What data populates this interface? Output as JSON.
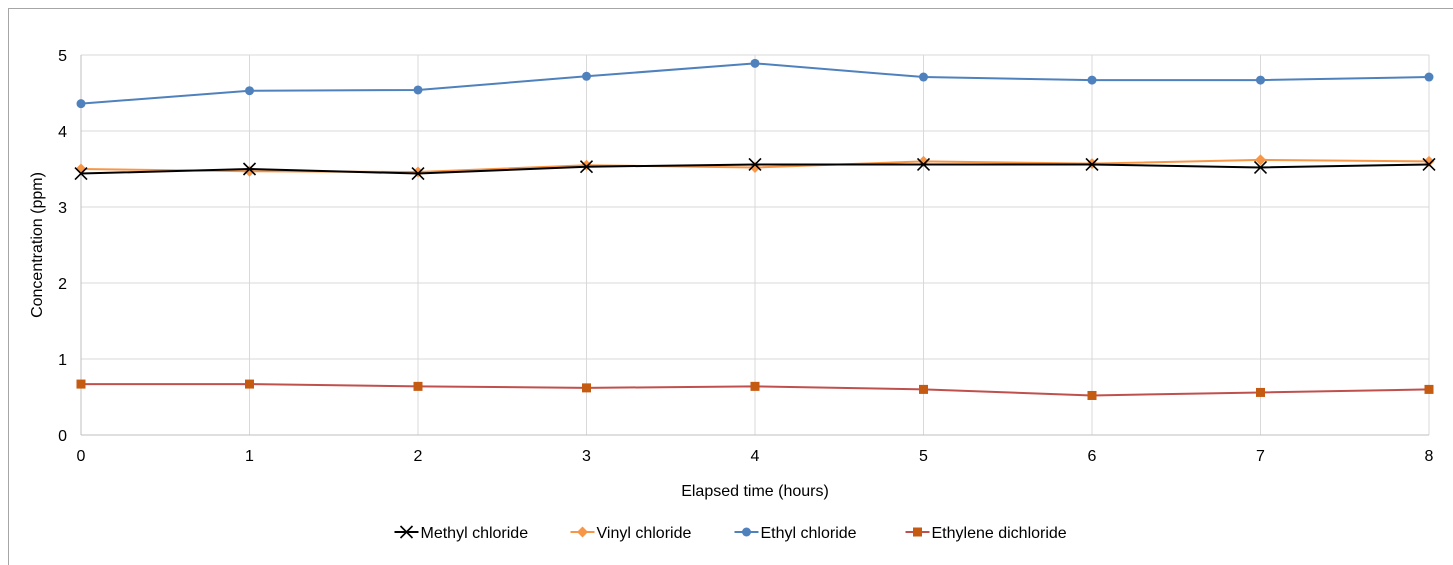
{
  "chart_data": {
    "type": "line",
    "xlabel": "Elapsed time (hours)",
    "ylabel": "Concentration (ppm)",
    "x": [
      0,
      1,
      2,
      3,
      4,
      5,
      6,
      7,
      8
    ],
    "xlim": [
      0,
      8
    ],
    "ylim": [
      0,
      5
    ],
    "xticks": [
      "0",
      "1",
      "2",
      "3",
      "4",
      "5",
      "6",
      "7",
      "8"
    ],
    "yticks": [
      "0",
      "1",
      "2",
      "3",
      "4",
      "5"
    ],
    "grid": true,
    "legend_position": "bottom",
    "series": [
      {
        "name": "Methyl chloride",
        "color": "#000000",
        "marker": "x",
        "values": [
          3.44,
          3.5,
          3.44,
          3.53,
          3.56,
          3.56,
          3.56,
          3.52,
          3.56
        ]
      },
      {
        "name": "Vinyl chloride",
        "color": "#f79646",
        "marker": "diamond",
        "values": [
          3.5,
          3.47,
          3.46,
          3.55,
          3.52,
          3.6,
          3.57,
          3.62,
          3.6
        ]
      },
      {
        "name": "Ethyl chloride",
        "color": "#4f81bd",
        "marker": "circle",
        "values": [
          4.36,
          4.53,
          4.54,
          4.72,
          4.89,
          4.71,
          4.67,
          4.67,
          4.71
        ]
      },
      {
        "name": "Ethylene dichloride",
        "color": "#c0504d",
        "markerColor": "#c55a11",
        "marker": "square",
        "values": [
          0.67,
          0.67,
          0.64,
          0.62,
          0.64,
          0.6,
          0.52,
          0.56,
          0.6
        ]
      }
    ]
  }
}
